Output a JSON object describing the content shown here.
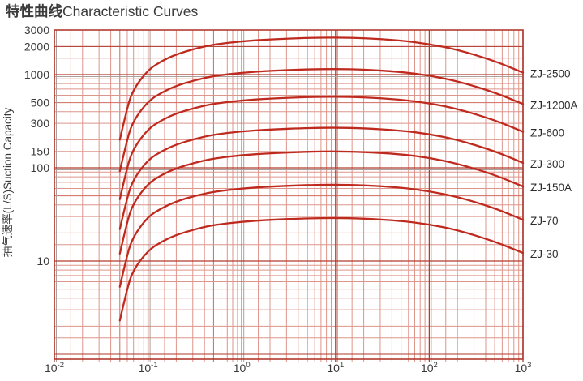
{
  "title_cjk": "特性曲线",
  "title_en": "Characteristic Curves",
  "colors": {
    "text": "#3a3a3a",
    "curve": "#bf2a1f",
    "grid_minor": "#de958b",
    "grid_five": "#cf6a5e",
    "grid_major": "#b23a2e",
    "grid_gray": "#a8a09c",
    "border": "#b23a2e",
    "label_text": "#2e2e2e"
  },
  "chart_data": {
    "type": "line",
    "title": "特性曲线Characteristic Curves",
    "xlabel": "",
    "ylabel": "抽气速率(L/S)Suction Capacity",
    "x_scale": "log",
    "y_scale": "log",
    "grid": true,
    "legend_position": "right-outside",
    "x_range": [
      0.01,
      1000
    ],
    "y_range": [
      1,
      3000
    ],
    "x_tick_labels": [
      "10⁻²",
      "10⁻¹",
      "10⁰",
      "10¹",
      "10²",
      "10³"
    ],
    "x_tick_exponents": [
      -2,
      -1,
      0,
      1,
      2,
      3
    ],
    "y_tick_values": [
      3000,
      2000,
      1000,
      500,
      300,
      150,
      100,
      10
    ],
    "x": [
      0.05,
      0.06,
      0.07,
      0.1,
      0.14,
      0.2,
      0.32,
      0.5,
      1,
      2,
      5,
      10,
      20,
      50,
      100,
      200,
      500,
      1000
    ],
    "series": [
      {
        "name": "ZJ-2500",
        "peak": 2500,
        "values": [
          200,
          450,
          700,
          1125,
          1400,
          1650,
          1900,
          2100,
          2275,
          2388,
          2475,
          2500,
          2463,
          2325,
          2125,
          1850,
          1400,
          1050
        ]
      },
      {
        "name": "ZJ-1200A",
        "peak": 1150,
        "values": [
          92,
          207,
          322,
          518,
          644,
          759,
          874,
          966,
          1047,
          1098,
          1139,
          1150,
          1133,
          1070,
          978,
          851,
          644,
          483
        ]
      },
      {
        "name": "ZJ-600",
        "peak": 580,
        "values": [
          46,
          104,
          162,
          261,
          325,
          383,
          441,
          487,
          528,
          554,
          574,
          580,
          571,
          539,
          493,
          429,
          325,
          244
        ]
      },
      {
        "name": "ZJ-300",
        "peak": 270,
        "values": [
          22,
          49,
          76,
          122,
          151,
          178,
          205,
          227,
          246,
          258,
          267,
          270,
          266,
          251,
          230,
          200,
          151,
          113
        ]
      },
      {
        "name": "ZJ-150A",
        "peak": 150,
        "values": [
          12,
          27,
          42,
          68,
          84,
          99,
          114,
          126,
          137,
          143,
          149,
          150,
          148,
          140,
          128,
          111,
          84,
          63
        ]
      },
      {
        "name": "ZJ-70",
        "peak": 66,
        "values": [
          5.3,
          12,
          18.5,
          30,
          37,
          43.6,
          50.2,
          55.4,
          60,
          63,
          65.3,
          66,
          65,
          61.4,
          56.1,
          48.8,
          37,
          27.7
        ]
      },
      {
        "name": "ZJ-30",
        "peak": 29,
        "values": [
          2.3,
          5.2,
          8.1,
          13,
          16.2,
          19.1,
          22,
          24.4,
          26.4,
          27.7,
          28.7,
          29,
          28.6,
          27,
          24.7,
          21.5,
          16.2,
          12.2
        ]
      }
    ]
  }
}
